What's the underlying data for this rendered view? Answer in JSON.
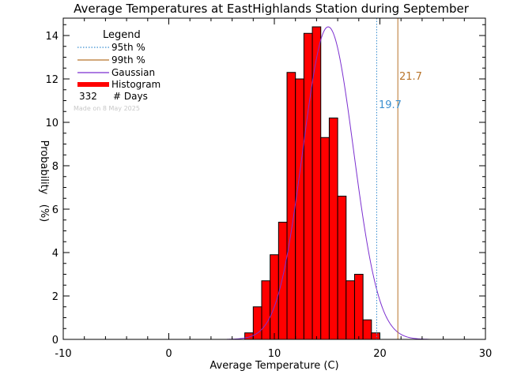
{
  "chart_data": {
    "type": "bar",
    "title": "Average Temperatures at EastHighlands Station during September",
    "xlabel": "Average Temperature (C)",
    "ylabel": "Probability",
    "ylabel_unit": "(%)",
    "xlim": [
      -10,
      30
    ],
    "ylim": [
      0,
      14.8
    ],
    "x_ticks": [
      "-10",
      "0",
      "10",
      "20",
      "30"
    ],
    "y_ticks": [
      "0",
      "2",
      "4",
      "6",
      "8",
      "10",
      "12",
      "14"
    ],
    "bin_width": 0.8,
    "histogram": {
      "bin_starts": [
        7.2,
        8.0,
        8.8,
        9.6,
        10.4,
        11.2,
        12.0,
        12.8,
        13.6,
        14.4,
        15.2,
        16.0,
        16.8,
        17.6,
        18.4,
        19.2,
        20.0,
        20.8,
        21.6,
        22.4
      ],
      "values": [
        0.3,
        1.5,
        2.7,
        3.9,
        5.4,
        12.3,
        12.0,
        14.1,
        14.4,
        9.3,
        10.2,
        6.6,
        2.7,
        3.0,
        0.9,
        0.3,
        0.0,
        0.0,
        0.0,
        0.0
      ]
    },
    "gaussian": {
      "mean": 15.1,
      "sigma": 2.4,
      "peak": 14.4
    },
    "percentiles": [
      {
        "name": "95th %",
        "value": 19.7,
        "label": "19.7",
        "color": "#3a8fd0"
      },
      {
        "name": "99th %",
        "value": 21.7,
        "label": "21.7",
        "color": "#b8742a"
      }
    ],
    "legend": {
      "title": "Legend",
      "items": [
        {
          "label": "95th %",
          "kind": "dotted",
          "color": "#3a8fd0"
        },
        {
          "label": "99th %",
          "kind": "line",
          "color": "#b8742a"
        },
        {
          "label": "Gaussian",
          "kind": "line",
          "color": "#7b2fd0"
        },
        {
          "label": "Histogram",
          "kind": "thick",
          "color": "#ff0000"
        }
      ],
      "count_value": "332",
      "count_label": "# Days",
      "placement": "top-left"
    },
    "note": "Made on 8 May 2025",
    "colors": {
      "histogram": "#ff0000",
      "gaussian": "#7b2fd0",
      "p95": "#3a8fd0",
      "p99": "#b8742a",
      "axis": "#000000"
    }
  }
}
